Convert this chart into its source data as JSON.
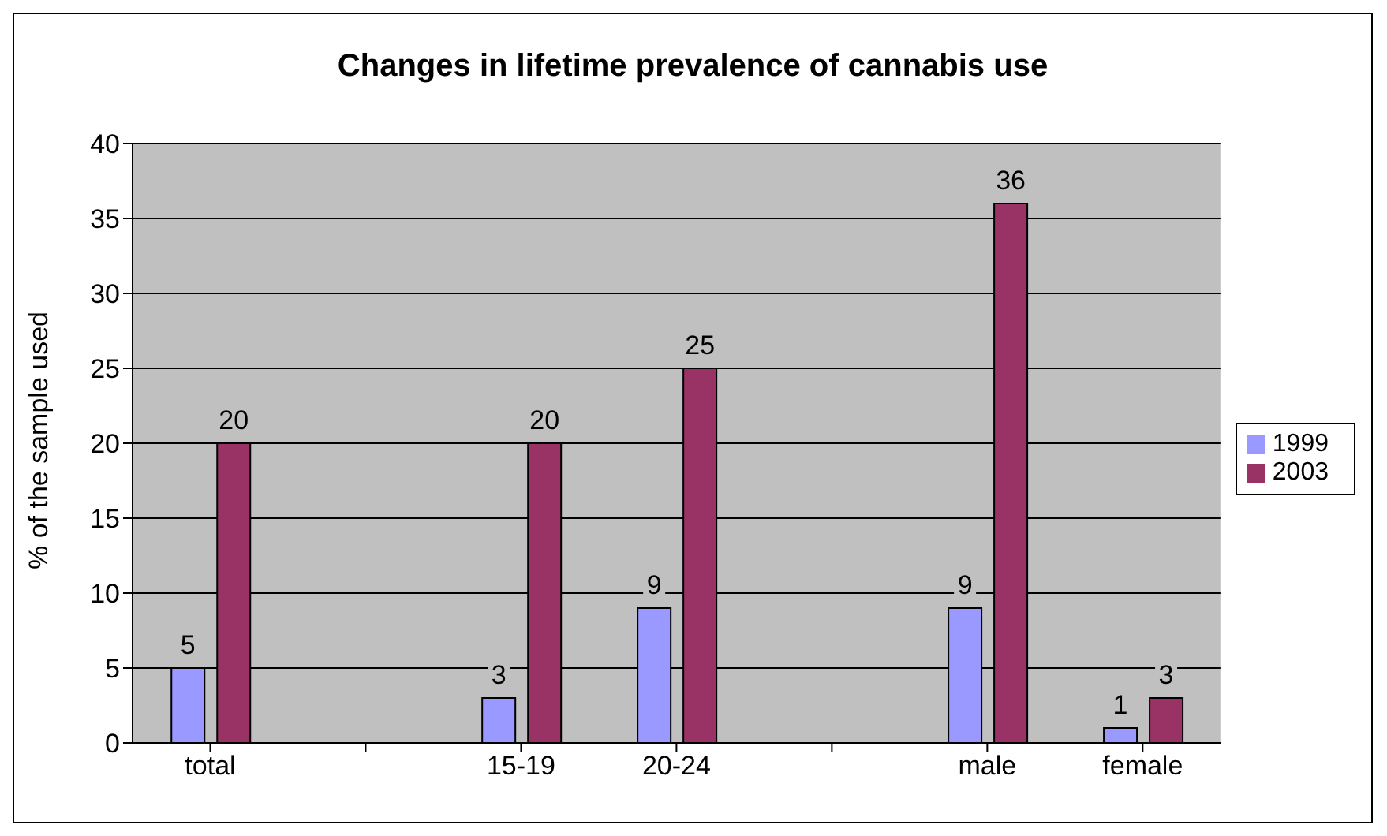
{
  "chart_data": {
    "type": "bar",
    "title": "Changes in lifetime prevalence of cannabis use",
    "ylabel": "% of the sample used",
    "categories": [
      "total",
      null,
      "15-19",
      "20-24",
      null,
      "male",
      "female"
    ],
    "series": [
      {
        "name": "1999",
        "color": "#9999ff",
        "values": [
          5,
          null,
          3,
          9,
          null,
          9,
          1
        ]
      },
      {
        "name": "2003",
        "color": "#993366",
        "values": [
          20,
          null,
          20,
          25,
          null,
          36,
          3
        ]
      }
    ],
    "ylim": [
      0,
      40
    ],
    "yticks": [
      0,
      5,
      10,
      15,
      20,
      25,
      30,
      35,
      40
    ],
    "grid": "y",
    "legend": "right",
    "data_labels": true
  }
}
